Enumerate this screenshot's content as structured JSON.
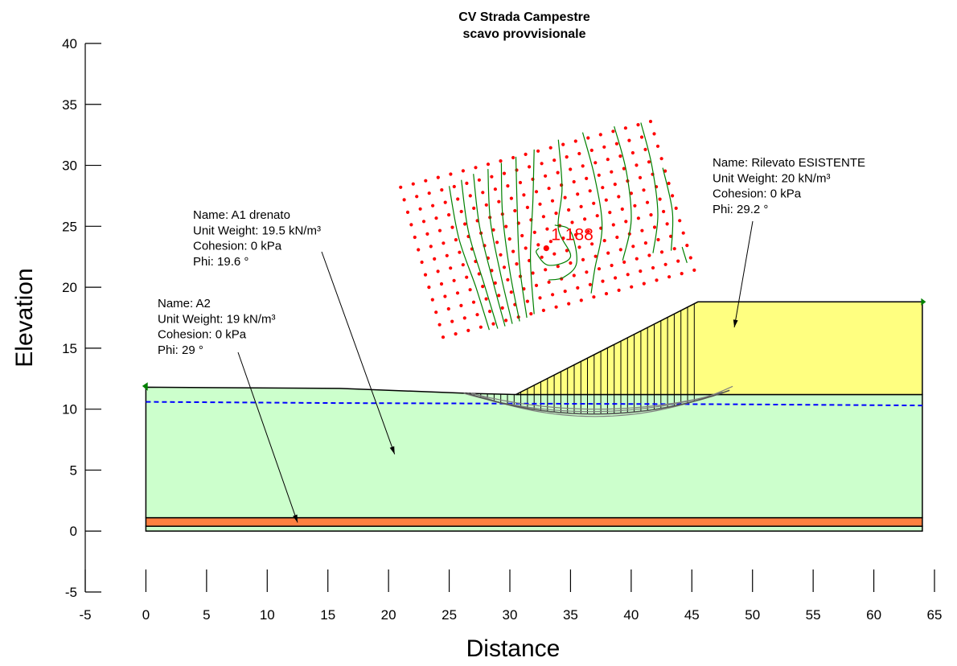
{
  "chart_data": {
    "type": "slope-stability",
    "title": [
      "CV Strada Campestre",
      "scavo provvisionale"
    ],
    "xlabel": "Distance",
    "ylabel": "Elevation",
    "xlim": [
      -5,
      65
    ],
    "ylim": [
      -5,
      40
    ],
    "xticks": [
      "-5",
      "0",
      "5",
      "10",
      "15",
      "20",
      "25",
      "30",
      "35",
      "40",
      "45",
      "50",
      "55",
      "60",
      "65"
    ],
    "yticks": [
      "40",
      "35",
      "30",
      "25",
      "20",
      "15",
      "10",
      "5",
      "0",
      "-5"
    ],
    "colors": {
      "a1": "#ccffcc",
      "a2": "#ff8040",
      "rilevato": "#ffff80",
      "water": "#0000ff",
      "grid_point": "#ff0000",
      "contour": "#008000",
      "slip": "#808080"
    },
    "materials": [
      {
        "name": "A1 drenato",
        "lines": [
          "Name: A1 drenato",
          "Unit Weight: 19.5 kN/m³",
          "Cohesion: 0 kPa",
          "Phi: 19.6 °"
        ],
        "arrow_to": [
          20.5,
          6.3
        ]
      },
      {
        "name": "A2",
        "lines": [
          "Name: A2",
          "Unit Weight: 19 kN/m³",
          "Cohesion: 0 kPa",
          "Phi: 29 °"
        ],
        "arrow_to": [
          12.5,
          0.7
        ]
      },
      {
        "name": "Rilevato ESISTENTE",
        "lines": [
          "Name: Rilevato ESISTENTE",
          "Unit Weight: 20 kN/m³",
          "Cohesion: 0 kPa",
          "Phi: 29.2 °"
        ],
        "arrow_to": [
          48.5,
          16.7
        ]
      }
    ],
    "geometry": {
      "a1_top": [
        [
          0,
          11.8
        ],
        [
          16,
          11.7
        ],
        [
          26.5,
          11.3
        ],
        [
          30.5,
          11.2
        ],
        [
          64,
          11.2
        ]
      ],
      "a1_bottom": 1.1,
      "a2_top": 1.1,
      "a2_bottom": 0.4,
      "base_bottom": 0,
      "rilevato": [
        [
          30.5,
          11.2
        ],
        [
          45.5,
          18.8
        ],
        [
          64,
          18.8
        ],
        [
          64,
          11.2
        ]
      ],
      "water_table": [
        [
          0,
          10.6
        ],
        [
          16,
          10.5
        ],
        [
          48,
          10.4
        ],
        [
          64,
          10.3
        ]
      ]
    },
    "critical_slip": {
      "fos": "1.188",
      "center": [
        33,
        23.2
      ],
      "entry": [
        26.5,
        11.3
      ],
      "exit": [
        45.5,
        18.8
      ],
      "bottom_y": 9.6
    },
    "slip_circles": [
      {
        "entry": [
          26.2,
          11.3
        ],
        "exit": [
          45.3,
          18.8
        ],
        "bottom_y": 9.8
      },
      {
        "entry": [
          26.8,
          11.3
        ],
        "exit": [
          45.6,
          18.8
        ],
        "bottom_y": 10.0
      },
      {
        "entry": [
          27.0,
          11.3
        ],
        "exit": [
          45.2,
          18.8
        ],
        "bottom_y": 9.4
      }
    ],
    "search_grid": {
      "corners": [
        [
          21,
          28.2
        ],
        [
          24.5,
          15.9
        ],
        [
          41.6,
          33.6
        ],
        [
          45.2,
          21.4
        ]
      ],
      "rows": 21,
      "cols": 13
    },
    "contour_lines": [
      [
        [
          25.0,
          28.3
        ],
        [
          25.8,
          24.0
        ],
        [
          27.2,
          20.0
        ],
        [
          28.3,
          16.5
        ]
      ],
      [
        [
          26.0,
          28.8
        ],
        [
          26.6,
          24.5
        ],
        [
          27.9,
          20.2
        ],
        [
          29.0,
          16.6
        ]
      ],
      [
        [
          27.0,
          29.3
        ],
        [
          27.5,
          25.0
        ],
        [
          28.6,
          20.5
        ],
        [
          29.6,
          16.8
        ]
      ],
      [
        [
          28.2,
          29.7
        ],
        [
          28.4,
          25.4
        ],
        [
          29.3,
          20.8
        ],
        [
          30.2,
          17.0
        ]
      ],
      [
        [
          29.3,
          30.2
        ],
        [
          29.4,
          26.0
        ],
        [
          30.0,
          21.3
        ],
        [
          30.8,
          17.2
        ]
      ],
      [
        [
          30.5,
          30.7
        ],
        [
          30.6,
          26.6
        ],
        [
          30.8,
          21.8
        ],
        [
          31.4,
          17.5
        ]
      ],
      [
        [
          32.0,
          31.3
        ],
        [
          31.9,
          27.2
        ],
        [
          31.7,
          22.3
        ],
        [
          32.0,
          17.8
        ]
      ],
      [
        [
          34.0,
          32.1
        ],
        [
          34.3,
          28.1
        ],
        [
          34.0,
          24.8
        ],
        [
          35.0,
          22.5
        ],
        [
          33.2,
          21.8
        ],
        [
          32.2,
          22.8
        ],
        [
          32.4,
          23.2
        ]
      ],
      [
        [
          33.7,
          25.1
        ],
        [
          35.0,
          24.6
        ],
        [
          35.5,
          22.0
        ],
        [
          34.4,
          20.8
        ],
        [
          33.2,
          20.6
        ]
      ],
      [
        [
          36.0,
          32.7
        ],
        [
          37.0,
          29.0
        ],
        [
          37.6,
          25.0
        ],
        [
          37.0,
          21.5
        ],
        [
          36.7,
          19.5
        ]
      ],
      [
        [
          38.6,
          33.2
        ],
        [
          39.6,
          29.5
        ],
        [
          40.0,
          25.5
        ],
        [
          39.3,
          22.2
        ]
      ],
      [
        [
          40.8,
          33.5
        ],
        [
          41.7,
          30.0
        ],
        [
          42.2,
          26.0
        ],
        [
          41.8,
          22.8
        ]
      ],
      [
        [
          42.6,
          29.8
        ],
        [
          43.4,
          26.2
        ],
        [
          43.3,
          23.0
        ]
      ],
      [
        [
          44.2,
          23.3
        ],
        [
          44.6,
          22.0
        ]
      ]
    ]
  }
}
